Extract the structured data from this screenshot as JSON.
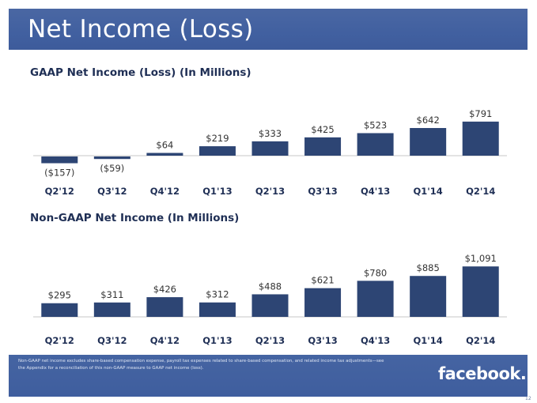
{
  "slide": {
    "title": "Net Income (Loss)",
    "footnote": "Non-GAAP net income excludes share-based compensation expense, payroll tax expenses related to share-based compensation, and related income tax adjustments—see the Appendix for a reconciliation of this non-GAAP measure to GAAP net income (loss).",
    "brand": "facebook.",
    "page_number": "12",
    "colors": {
      "title_bar": "#4263a1",
      "bar": "#2d4574",
      "axis_label": "#1f2f55",
      "value_label": "#333333"
    }
  },
  "chart_data": [
    {
      "type": "bar",
      "title": "GAAP Net Income (Loss) (In Millions)",
      "categories": [
        "Q2'12",
        "Q3'12",
        "Q4'12",
        "Q1'13",
        "Q2'13",
        "Q3'13",
        "Q4'13",
        "Q1'14",
        "Q2'14"
      ],
      "values": [
        -157,
        -59,
        64,
        219,
        333,
        425,
        523,
        642,
        791
      ],
      "value_labels": [
        "($157)",
        "($59)",
        "$64",
        "$219",
        "$333",
        "$425",
        "$523",
        "$642",
        "$791"
      ],
      "grid": false
    },
    {
      "type": "bar",
      "title": "Non-GAAP Net Income (In Millions)",
      "categories": [
        "Q2'12",
        "Q3'12",
        "Q4'12",
        "Q1'13",
        "Q2'13",
        "Q3'13",
        "Q4'13",
        "Q1'14",
        "Q2'14"
      ],
      "values": [
        295,
        311,
        426,
        312,
        488,
        621,
        780,
        885,
        1091
      ],
      "value_labels": [
        "$295",
        "$311",
        "$426",
        "$312",
        "$488",
        "$621",
        "$780",
        "$885",
        "$1,091"
      ],
      "grid": false
    }
  ]
}
